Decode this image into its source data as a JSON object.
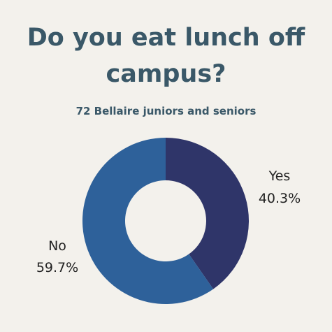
{
  "title": "Do you eat lunch off campus?",
  "subtitle": "72 Bellaire juniors and seniors",
  "chart_data": {
    "type": "pie",
    "style": "donut",
    "title": "Do you eat lunch off campus?",
    "subtitle": "72 Bellaire juniors and seniors",
    "slices": [
      {
        "label": "Yes",
        "value": 40.3,
        "value_label": "40.3%",
        "color": "#2f3569"
      },
      {
        "label": "No",
        "value": 59.7,
        "value_label": "59.7%",
        "color": "#2e619a"
      }
    ]
  }
}
